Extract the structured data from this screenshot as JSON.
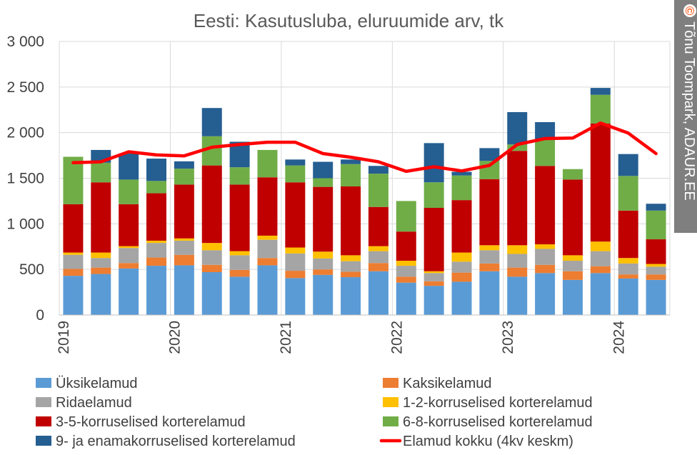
{
  "chart_data": {
    "type": "bar",
    "title": "Eesti: Kasutusluba, eluruumide arv, tk",
    "stacked": true,
    "ylim": [
      0,
      3000
    ],
    "y_ticks": [
      0,
      500,
      1000,
      1500,
      2000,
      2500,
      3000
    ],
    "y_tick_labels": [
      "0",
      "500",
      "1 000",
      "1 500",
      "2 000",
      "2 500",
      "3 000"
    ],
    "year_labels": [
      {
        "label": "2019",
        "start_index": 0
      },
      {
        "label": "2020",
        "start_index": 4
      },
      {
        "label": "2021",
        "start_index": 8
      },
      {
        "label": "2022",
        "start_index": 12
      },
      {
        "label": "2023",
        "start_index": 16
      },
      {
        "label": "2024",
        "start_index": 20
      }
    ],
    "categories": [
      "2019 Q1",
      "2019 Q2",
      "2019 Q3",
      "2019 Q4",
      "2020 Q1",
      "2020 Q2",
      "2020 Q3",
      "2020 Q4",
      "2021 Q1",
      "2021 Q2",
      "2021 Q3",
      "2021 Q4",
      "2022 Q1",
      "2022 Q2",
      "2022 Q3",
      "2022 Q4",
      "2023 Q1",
      "2023 Q2",
      "2023 Q3",
      "2023 Q4",
      "2024 Q1",
      "2024 Q2"
    ],
    "series": [
      {
        "name": "Üksikelamud",
        "color": "#5B9BD5",
        "values": [
          430,
          450,
          510,
          540,
          545,
          470,
          420,
          545,
          405,
          440,
          415,
          480,
          355,
          320,
          365,
          480,
          420,
          460,
          385,
          460,
          400,
          385
        ]
      },
      {
        "name": "Kaksikelamud",
        "color": "#ED7D31",
        "values": [
          75,
          70,
          60,
          90,
          115,
          80,
          75,
          80,
          80,
          60,
          60,
          90,
          65,
          50,
          100,
          85,
          100,
          90,
          95,
          75,
          45,
          60
        ]
      },
      {
        "name": "Ridaelamud",
        "color": "#A5A5A5",
        "values": [
          155,
          105,
          165,
          160,
          155,
          160,
          160,
          200,
          190,
          120,
          115,
          130,
          120,
          90,
          120,
          145,
          150,
          175,
          115,
          165,
          120,
          85
        ]
      },
      {
        "name": "1-2-korruselised korterelamud",
        "color": "#FFC000",
        "values": [
          25,
          60,
          20,
          25,
          25,
          80,
          45,
          45,
          65,
          75,
          65,
          55,
          55,
          20,
          100,
          55,
          95,
          50,
          60,
          105,
          60,
          30
        ]
      },
      {
        "name": "3-5-korruselised korterelamud",
        "color": "#C00000",
        "values": [
          530,
          770,
          460,
          520,
          590,
          850,
          730,
          640,
          715,
          710,
          755,
          430,
          320,
          695,
          575,
          725,
          1035,
          860,
          830,
          1295,
          520,
          270
        ]
      },
      {
        "name": "6-8-korruselised korterelamud",
        "color": "#70AD47",
        "values": [
          520,
          215,
          270,
          135,
          175,
          320,
          190,
          300,
          185,
          95,
          245,
          365,
          335,
          280,
          270,
          200,
          70,
          290,
          115,
          315,
          380,
          315
        ]
      },
      {
        "name": "9- ja enamakorruselised korterelamud",
        "color": "#255E91",
        "values": [
          0,
          140,
          285,
          245,
          80,
          310,
          280,
          0,
          65,
          180,
          50,
          85,
          0,
          430,
          40,
          140,
          355,
          190,
          0,
          75,
          240,
          75
        ]
      }
    ],
    "line_series": {
      "name": "Elamud kokku (4kv keskm)",
      "color": "#FF0000",
      "values": [
        1670,
        1680,
        1790,
        1755,
        1745,
        1840,
        1870,
        1895,
        1895,
        1770,
        1730,
        1680,
        1575,
        1625,
        1580,
        1640,
        1870,
        1935,
        1940,
        2105,
        1995,
        1770
      ]
    },
    "legend": {
      "position": "bottom",
      "entries": [
        {
          "label": "Üksikelamud",
          "color": "#5B9BD5",
          "kind": "box"
        },
        {
          "label": "Kaksikelamud",
          "color": "#ED7D31",
          "kind": "box"
        },
        {
          "label": "Ridaelamud",
          "color": "#A5A5A5",
          "kind": "box"
        },
        {
          "label": "1-2-korruselised korterelamud",
          "color": "#FFC000",
          "kind": "box"
        },
        {
          "label": "3-5-korruselised korterelamud",
          "color": "#C00000",
          "kind": "box"
        },
        {
          "label": "6-8-korruselised korterelamud",
          "color": "#70AD47",
          "kind": "box"
        },
        {
          "label": "9- ja enamakorruselised korterelamud",
          "color": "#255E91",
          "kind": "box"
        },
        {
          "label": "Elamud kokku (4kv keskm)",
          "color": "#FF0000",
          "kind": "line"
        }
      ]
    },
    "grid": {
      "horizontal": true,
      "vertical_year_lines": true
    }
  },
  "copyright": {
    "symbol": "©",
    "text": "Tõnu Toompark, ADAUR.EE",
    "background": "#7F7F7F"
  }
}
